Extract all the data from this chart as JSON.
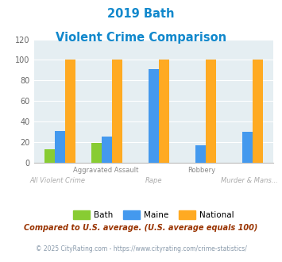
{
  "title_line1": "2019 Bath",
  "title_line2": "Violent Crime Comparison",
  "categories": [
    "All Violent Crime",
    "Aggravated Assault",
    "Rape",
    "Robbery",
    "Murder & Mans..."
  ],
  "bath": [
    13,
    19,
    0,
    0,
    0
  ],
  "maine": [
    31,
    25,
    91,
    17,
    30
  ],
  "national": [
    100,
    100,
    100,
    100,
    100
  ],
  "color_bath": "#88cc33",
  "color_maine": "#4499ee",
  "color_national": "#ffaa22",
  "color_title": "#1188cc",
  "ylim": [
    0,
    120
  ],
  "yticks": [
    0,
    20,
    40,
    60,
    80,
    100,
    120
  ],
  "footnote1": "Compared to U.S. average. (U.S. average equals 100)",
  "footnote2": "© 2025 CityRating.com - https://www.cityrating.com/crime-statistics/",
  "bg_color": "#e5eef2",
  "legend_labels": [
    "Bath",
    "Maine",
    "National"
  ],
  "top_xlabels": [
    "",
    "Aggravated Assault",
    "",
    "Robbery",
    ""
  ],
  "bottom_xlabels": [
    "All Violent Crime",
    "",
    "Rape",
    "",
    "Murder & Mans..."
  ]
}
